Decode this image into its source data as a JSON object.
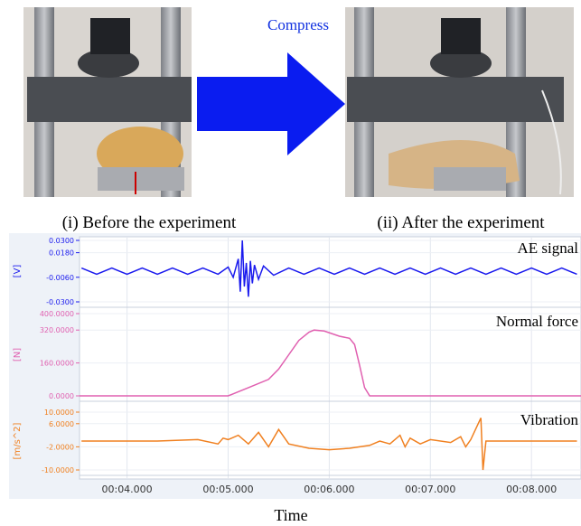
{
  "photos": {
    "arrow_label": "Compress",
    "captions": [
      "(i) Before the experiment",
      "(ii) After the experiment"
    ]
  },
  "chart_data": {
    "type": "line",
    "x_label": "Time",
    "xlim": [
      3.53,
      8.49
    ],
    "xticks": [
      {
        "value": 4,
        "label": "00:04.000"
      },
      {
        "value": 5,
        "label": "00:05.000"
      },
      {
        "value": 6,
        "label": "00:06.000"
      },
      {
        "value": 7,
        "label": "00:07.000"
      },
      {
        "value": 8,
        "label": "00:08.000"
      }
    ],
    "grid": true,
    "series": [
      {
        "name": "AE signal",
        "color": "#1a1aee",
        "y_label": "[V]",
        "ylim": [
          -0.03,
          0.03
        ],
        "yticks": [
          {
            "value": 0.03,
            "label": "0.0300"
          },
          {
            "value": 0.018,
            "label": "0.0180"
          },
          {
            "value": -0.006,
            "label": "-0.0060"
          },
          {
            "value": -0.03,
            "label": "-0.0300"
          }
        ],
        "x": [
          3.55,
          3.7,
          3.85,
          4.0,
          4.15,
          4.3,
          4.45,
          4.6,
          4.75,
          4.9,
          5.0,
          5.05,
          5.1,
          5.12,
          5.14,
          5.16,
          5.18,
          5.2,
          5.22,
          5.24,
          5.26,
          5.3,
          5.35,
          5.45,
          5.6,
          5.75,
          5.9,
          6.05,
          6.2,
          6.35,
          6.5,
          6.65,
          6.8,
          6.95,
          7.1,
          7.25,
          7.4,
          7.55,
          7.7,
          7.85,
          8.0,
          8.15,
          8.3,
          8.45
        ],
        "values": [
          0.003,
          -0.003,
          0.003,
          -0.003,
          0.003,
          -0.003,
          0.003,
          -0.003,
          0.003,
          -0.003,
          0.004,
          -0.006,
          0.012,
          -0.02,
          0.03,
          -0.015,
          0.008,
          -0.025,
          0.01,
          -0.012,
          0.006,
          -0.008,
          0.005,
          -0.004,
          0.003,
          -0.003,
          0.003,
          -0.003,
          0.003,
          -0.003,
          0.003,
          -0.003,
          0.003,
          -0.003,
          0.003,
          -0.003,
          0.003,
          -0.003,
          0.003,
          -0.003,
          0.003,
          -0.003,
          0.003,
          -0.003
        ]
      },
      {
        "name": "Normal force",
        "color": "#e060b0",
        "y_label": "[N]",
        "ylim": [
          0,
          400
        ],
        "yticks": [
          {
            "value": 400,
            "label": "400.0000"
          },
          {
            "value": 320,
            "label": "320.0000"
          },
          {
            "value": 160,
            "label": "160.0000"
          },
          {
            "value": 0,
            "label": "0.0000"
          }
        ],
        "x": [
          3.53,
          5.0,
          5.2,
          5.4,
          5.5,
          5.6,
          5.7,
          5.8,
          5.85,
          5.95,
          6.1,
          6.2,
          6.25,
          6.3,
          6.35,
          6.4,
          8.49
        ],
        "values": [
          0,
          0,
          40,
          80,
          130,
          200,
          270,
          310,
          320,
          315,
          290,
          280,
          250,
          150,
          40,
          0,
          0
        ]
      },
      {
        "name": "Vibration",
        "color": "#f08020",
        "y_label": "[m/s^2]",
        "ylim": [
          -10,
          10
        ],
        "yticks": [
          {
            "value": 10,
            "label": "10.0000"
          },
          {
            "value": 6,
            "label": "6.0000"
          },
          {
            "value": -2,
            "label": "-2.0000"
          },
          {
            "value": -10,
            "label": "-10.0000"
          }
        ],
        "x": [
          3.55,
          3.9,
          4.3,
          4.7,
          4.9,
          4.95,
          5.0,
          5.1,
          5.2,
          5.3,
          5.4,
          5.5,
          5.6,
          5.8,
          6.0,
          6.2,
          6.4,
          6.5,
          6.6,
          6.7,
          6.75,
          6.8,
          6.9,
          7.0,
          7.2,
          7.3,
          7.35,
          7.4,
          7.5,
          7.52,
          7.55,
          7.7,
          8.0,
          8.45
        ],
        "values": [
          0,
          0,
          0,
          0.5,
          -1,
          1,
          0.5,
          2,
          -1,
          3,
          -2,
          4,
          -1,
          -2.5,
          -3,
          -2.5,
          -1.5,
          0,
          -1,
          2,
          -2,
          1,
          -1,
          0.5,
          -0.5,
          1.5,
          -2,
          0.5,
          8,
          -10,
          0,
          0,
          0,
          0
        ]
      }
    ]
  }
}
